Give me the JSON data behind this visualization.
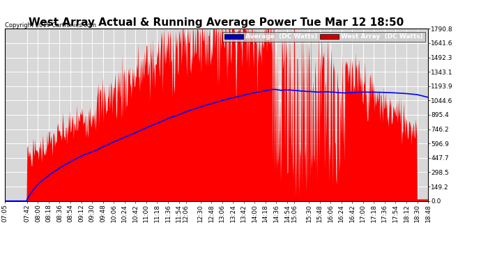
{
  "title": "West Array Actual & Running Average Power Tue Mar 12 18:50",
  "copyright": "Copyright 2019 Cartronics.com",
  "legend_labels": [
    "Average  (DC Watts)",
    "West Array  (DC Watts)"
  ],
  "yticks": [
    0.0,
    149.2,
    298.5,
    447.7,
    596.9,
    746.2,
    895.4,
    1044.6,
    1193.9,
    1343.1,
    1492.3,
    1641.6,
    1790.8
  ],
  "ymax": 1790.8,
  "ymin": 0.0,
  "bg_color": "#ffffff",
  "plot_bg": "#d8d8d8",
  "grid_color": "#ffffff",
  "fill_color": "#ff0000",
  "line_color": "#0000ff",
  "title_fontsize": 11,
  "axis_fontsize": 6.5,
  "xtick_labels": [
    "07:05",
    "07:42",
    "08:00",
    "08:18",
    "08:36",
    "08:54",
    "09:12",
    "09:30",
    "09:48",
    "10:06",
    "10:24",
    "10:42",
    "11:00",
    "11:18",
    "11:36",
    "11:54",
    "12:06",
    "12:30",
    "12:48",
    "13:06",
    "13:24",
    "13:42",
    "14:00",
    "14:18",
    "14:36",
    "14:54",
    "15:06",
    "15:30",
    "15:48",
    "16:06",
    "16:24",
    "16:42",
    "17:00",
    "17:18",
    "17:36",
    "17:54",
    "18:12",
    "18:30",
    "18:48"
  ]
}
